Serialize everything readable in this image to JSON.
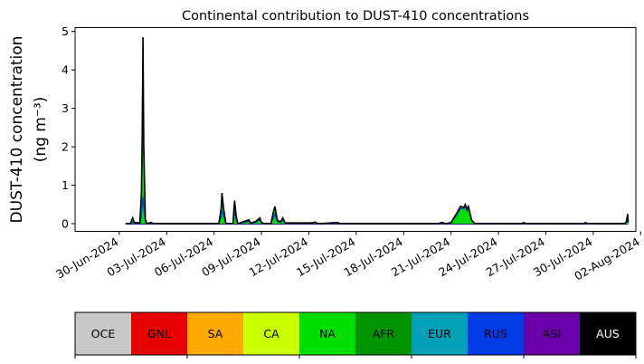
{
  "chart_data": {
    "type": "area",
    "title": "Continental contribution to DUST-410 concentrations",
    "ylabel_line1": "DUST-410 concentration",
    "ylabel_line2": "(ng m⁻³)",
    "xlabel": "",
    "x_start": "2024-06-29",
    "xlim_days": [
      -1.8,
      33.7
    ],
    "ylim": [
      -0.2,
      5.1
    ],
    "yticks": [
      0,
      1,
      2,
      3,
      4,
      5
    ],
    "ytick_labels": [
      "0",
      "1",
      "2",
      "3",
      "4",
      "5"
    ],
    "xtick_days": [
      1,
      4,
      7,
      10,
      13,
      16,
      19,
      22,
      25,
      28,
      31,
      34
    ],
    "xtick_labels": [
      "30-Jun-2024",
      "03-Jul-2024",
      "06-Jul-2024",
      "09-Jul-2024",
      "12-Jul-2024",
      "15-Jul-2024",
      "18-Jul-2024",
      "21-Jul-2024",
      "24-Jul-2024",
      "27-Jul-2024",
      "30-Jul-2024",
      "02-Aug-2024"
    ],
    "total_line_color": "#000000",
    "points": [
      [
        0,
        0.0,
        0.0
      ],
      [
        0.3,
        0.0,
        0.0
      ],
      [
        0.45,
        0.15,
        0.04
      ],
      [
        0.55,
        0.03,
        0.01
      ],
      [
        0.9,
        0.02,
        0.0
      ],
      [
        1.0,
        0.8,
        0.2
      ],
      [
        1.05,
        2.3,
        0.5
      ],
      [
        1.1,
        4.85,
        0.7
      ],
      [
        1.15,
        2.0,
        0.4
      ],
      [
        1.25,
        0.1,
        0.05
      ],
      [
        1.35,
        0.0,
        0.0
      ],
      [
        1.6,
        0.03,
        0.02
      ],
      [
        1.8,
        0.0,
        0.0
      ],
      [
        5.9,
        0.0,
        0.0
      ],
      [
        6.05,
        0.4,
        0.2
      ],
      [
        6.1,
        0.8,
        0.35
      ],
      [
        6.2,
        0.4,
        0.2
      ],
      [
        6.35,
        0.0,
        0.0
      ],
      [
        6.8,
        0.0,
        0.0
      ],
      [
        6.85,
        0.35,
        0.2
      ],
      [
        6.9,
        0.6,
        0.3
      ],
      [
        7.0,
        0.2,
        0.1
      ],
      [
        7.1,
        0.0,
        0.0
      ],
      [
        7.8,
        0.1,
        0.06
      ],
      [
        7.9,
        0.02,
        0.01
      ],
      [
        8.2,
        0.05,
        0.03
      ],
      [
        8.5,
        0.15,
        0.1
      ],
      [
        8.6,
        0.03,
        0.02
      ],
      [
        8.8,
        0.0,
        0.0
      ],
      [
        9.2,
        0.0,
        0.0
      ],
      [
        9.35,
        0.3,
        0.15
      ],
      [
        9.45,
        0.45,
        0.25
      ],
      [
        9.6,
        0.1,
        0.05
      ],
      [
        9.8,
        0.04,
        0.03
      ],
      [
        9.95,
        0.15,
        0.1
      ],
      [
        10.1,
        0.02,
        0.01
      ],
      [
        11.8,
        0.02,
        0.02
      ],
      [
        12.0,
        0.04,
        0.03
      ],
      [
        12.2,
        0.0,
        0.0
      ],
      [
        13.4,
        0.03,
        0.02
      ],
      [
        13.6,
        0.0,
        0.0
      ],
      [
        19.8,
        0.0,
        0.0
      ],
      [
        20.0,
        0.03,
        0.02
      ],
      [
        20.3,
        0.0,
        0.0
      ],
      [
        20.6,
        0.03,
        0.02
      ],
      [
        21.0,
        0.3,
        0.25
      ],
      [
        21.2,
        0.45,
        0.4
      ],
      [
        21.4,
        0.42,
        0.38
      ],
      [
        21.5,
        0.5,
        0.44
      ],
      [
        21.6,
        0.38,
        0.34
      ],
      [
        21.7,
        0.45,
        0.4
      ],
      [
        21.9,
        0.1,
        0.08
      ],
      [
        22.1,
        0.0,
        0.0
      ],
      [
        25.1,
        0.0,
        0.0
      ],
      [
        25.2,
        0.03,
        0.02
      ],
      [
        25.35,
        0.0,
        0.0
      ],
      [
        29.0,
        0.0,
        0.0
      ],
      [
        29.1,
        0.03,
        0.02
      ],
      [
        29.25,
        0.0,
        0.0
      ],
      [
        31.6,
        0.0,
        0.0
      ],
      [
        31.7,
        0.06,
        0.05
      ],
      [
        31.78,
        0.25,
        0.1
      ],
      [
        31.82,
        0.03,
        0.02
      ]
    ],
    "legend": {
      "labels": [
        "OCE",
        "GNL",
        "SA",
        "CA",
        "NA",
        "AFR",
        "EUR",
        "RUS",
        "ASI",
        "AUS"
      ],
      "colors": [
        "#c8c8c8",
        "#e60000",
        "#ffaa00",
        "#ccff00",
        "#00dd00",
        "#009400",
        "#00a0b9",
        "#003ce6",
        "#6a00a8",
        "#000000"
      ],
      "text_colors": [
        "#000000",
        "#000000",
        "#000000",
        "#000000",
        "#000000",
        "#000000",
        "#000000",
        "#000000",
        "#000000",
        "#ffffff"
      ]
    }
  }
}
